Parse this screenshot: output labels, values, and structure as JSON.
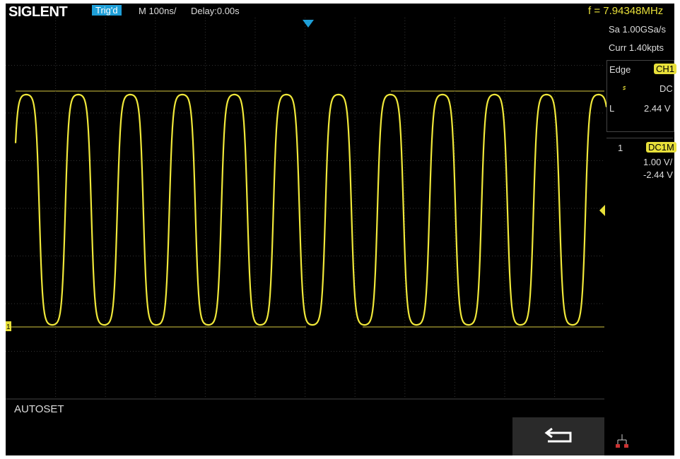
{
  "header": {
    "brand": "SIGLENT",
    "trigger_status": "Trig'd",
    "timebase": "M 100ns/",
    "delay": "Delay:0.00s",
    "frequency": "f = 7.94348MHz"
  },
  "side_panel": {
    "sample_rate": "Sa 1.00GSa/s",
    "memory_depth": "Curr 1.40kpts",
    "trigger": {
      "type": "Edge",
      "source": "CH1",
      "coupling": "DC",
      "level_label": "L",
      "level": "2.44 V"
    },
    "channel": {
      "number": "1",
      "coupling_impedance": "DC1M",
      "scale": "1.00 V/",
      "offset": "-2.44 V"
    }
  },
  "screen": {
    "ground_marker": "1",
    "message": "AUTOSET"
  }
}
